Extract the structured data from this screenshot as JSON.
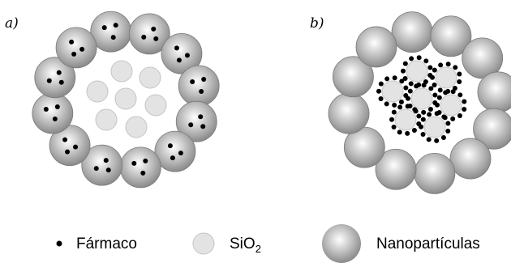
{
  "panels": [
    {
      "label": "a)"
    },
    {
      "label": "b)"
    }
  ],
  "legend": {
    "drug": "Fármaco",
    "silica_main": "SiO",
    "silica_sub": "2",
    "nanoparticles": "Nanopartículas"
  },
  "colors": {
    "drug": "#000000",
    "silica_fill": "#e3e3e3",
    "silica_stroke": "#c4c4c4",
    "nanoparticle_light": "#ffffff",
    "nanoparticle_dark": "#8a8a8a",
    "background": "#ffffff"
  }
}
